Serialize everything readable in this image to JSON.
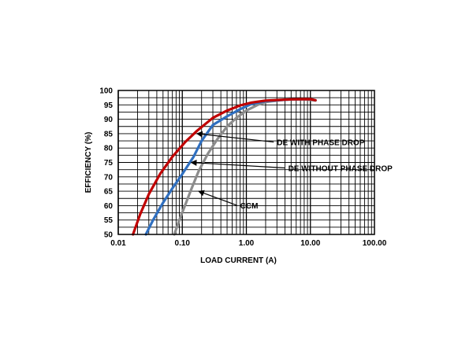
{
  "chart_data": {
    "type": "line",
    "title": "",
    "xlabel": "LOAD CURRENT (A)",
    "ylabel": "EFFICIENCY (%)",
    "xscale": "log",
    "xlim": [
      0.01,
      100
    ],
    "ylim": [
      50,
      100
    ],
    "grid": true,
    "x_tick_labels": [
      "0.01",
      "0.10",
      "1.00",
      "10.00",
      "100.00"
    ],
    "y_tick_labels": [
      "50",
      "55",
      "60",
      "65",
      "70",
      "75",
      "80",
      "85",
      "90",
      "95",
      "100"
    ],
    "colors": {
      "grid": "#000000",
      "de_with": "#c00000",
      "de_without": "#2f6fc0",
      "ccm": "#8c8c8c"
    },
    "series": [
      {
        "name": "DE WITH PHASE DROP",
        "points": [
          [
            0.017,
            50
          ],
          [
            0.022,
            57
          ],
          [
            0.03,
            64
          ],
          [
            0.045,
            71
          ],
          [
            0.07,
            77
          ],
          [
            0.11,
            82
          ],
          [
            0.17,
            86
          ],
          [
            0.3,
            90.5
          ],
          [
            0.5,
            93
          ],
          [
            0.8,
            94.8
          ],
          [
            1.2,
            95.8
          ],
          [
            2,
            96.5
          ],
          [
            5,
            96.9
          ],
          [
            10,
            97
          ],
          [
            12,
            96.6
          ]
        ]
      },
      {
        "name": "DE WITHOUT PHASE DROP",
        "points": [
          [
            0.027,
            50
          ],
          [
            0.035,
            55
          ],
          [
            0.05,
            61
          ],
          [
            0.07,
            66
          ],
          [
            0.1,
            71
          ],
          [
            0.15,
            77
          ],
          [
            0.2,
            82.5
          ],
          [
            0.3,
            88
          ],
          [
            0.5,
            91
          ],
          [
            0.8,
            93.5
          ],
          [
            1.2,
            95.3
          ],
          [
            2,
            96.3
          ],
          [
            5,
            96.9
          ],
          [
            10,
            97
          ],
          [
            12,
            96.6
          ]
        ]
      },
      {
        "name": "CCM",
        "points": [
          [
            0.075,
            50
          ],
          [
            0.09,
            55
          ],
          [
            0.11,
            60
          ],
          [
            0.14,
            66
          ],
          [
            0.18,
            72
          ],
          [
            0.25,
            78
          ],
          [
            0.35,
            83
          ],
          [
            0.5,
            87.5
          ],
          [
            0.7,
            90.5
          ],
          [
            1,
            93
          ],
          [
            1.5,
            95
          ],
          [
            2,
            96
          ],
          [
            4,
            96.8
          ],
          [
            8,
            97
          ],
          [
            12,
            96.5
          ]
        ]
      }
    ],
    "annotations": [
      {
        "text": "DE WITH PHASE  DROP",
        "series": 0,
        "target": [
          0.16,
          85
        ],
        "label_at": [
          3,
          81
        ]
      },
      {
        "text": "DE WITHOUT PHASE DROP",
        "series": 1,
        "target": [
          0.13,
          75
        ],
        "label_at": [
          4.5,
          72
        ]
      },
      {
        "text": "CCM",
        "series": 2,
        "target": [
          0.17,
          65
        ],
        "label_at": [
          0.8,
          59
        ]
      }
    ]
  }
}
